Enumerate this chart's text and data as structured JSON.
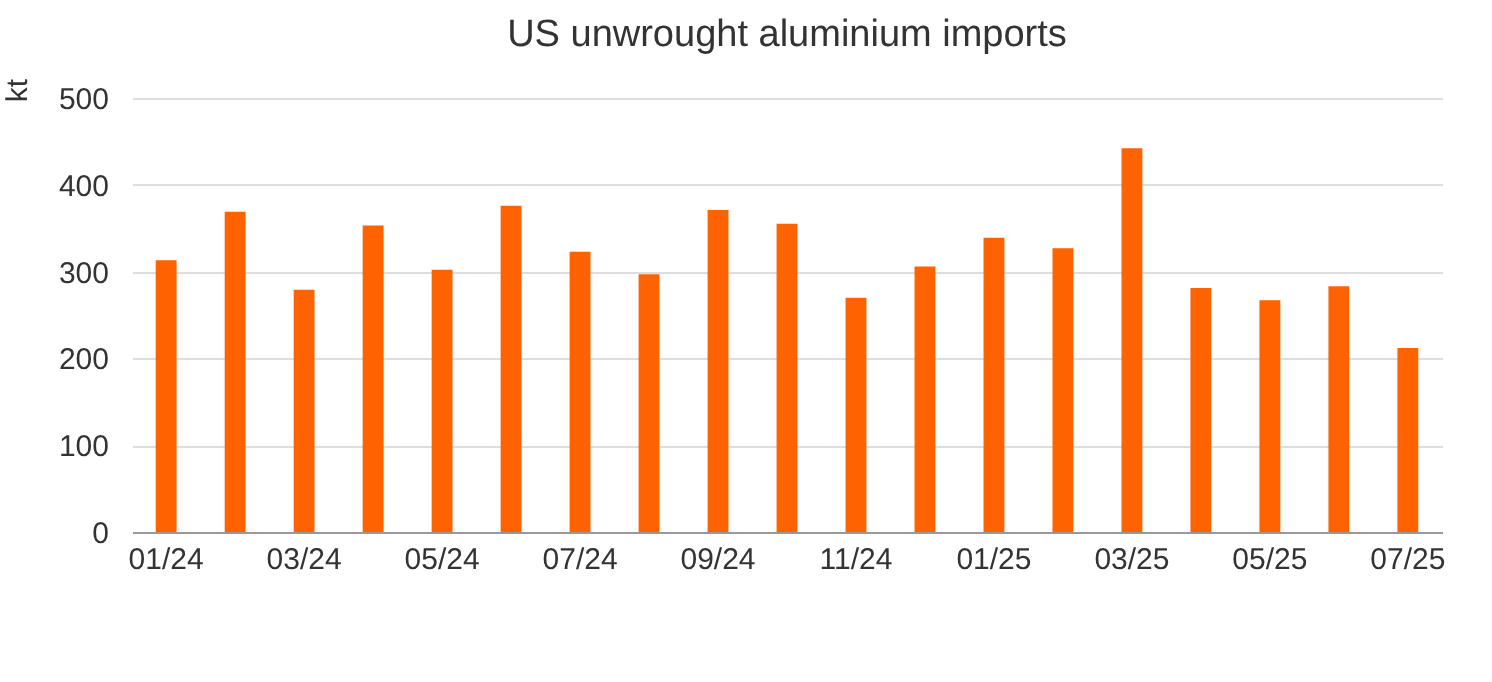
{
  "chart_data": {
    "type": "bar",
    "title": "US unwrought aluminium imports",
    "ylabel": "kt",
    "categories": [
      "01/24",
      null,
      "03/24",
      null,
      "05/24",
      null,
      "07/24",
      null,
      "09/24",
      null,
      "11/24",
      null,
      "01/25",
      null,
      "03/25",
      null,
      "05/25",
      null,
      "07/25"
    ],
    "values": [
      313,
      369,
      279,
      353,
      302,
      376,
      323,
      297,
      371,
      355,
      270,
      306,
      339,
      327,
      442,
      281,
      267,
      283,
      212
    ],
    "color": "#ff6200",
    "ylim": [
      0,
      500
    ],
    "yticks": [
      0,
      100,
      200,
      300,
      400,
      500
    ],
    "grid": "y"
  }
}
